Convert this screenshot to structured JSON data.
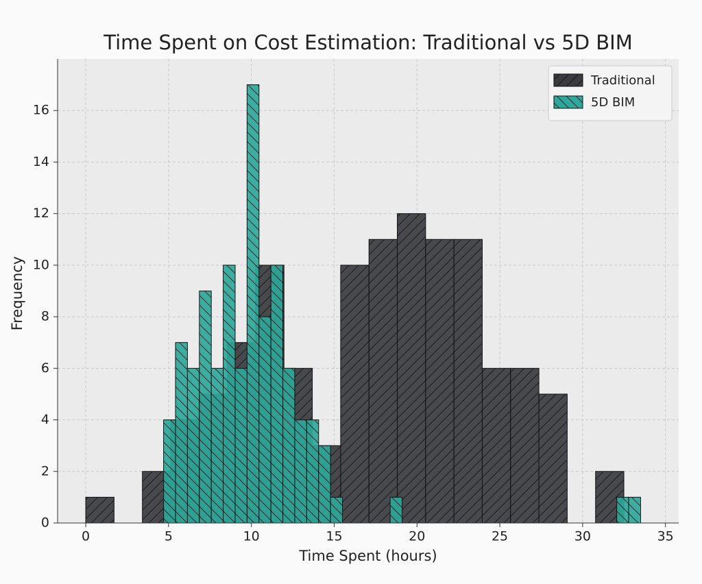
{
  "chart_data": {
    "type": "histogram",
    "title": "Time Spent on Cost Estimation: Traditional vs 5D BIM",
    "x_label": "Time Spent (hours)",
    "y_label": "Frequency",
    "xlim": [
      -1.7,
      35.8
    ],
    "ylim": [
      0,
      18
    ],
    "xticks": [
      0,
      5,
      10,
      15,
      20,
      25,
      30,
      35
    ],
    "yticks": [
      0,
      2,
      4,
      6,
      8,
      10,
      12,
      14,
      16
    ],
    "grid": true,
    "legend": "upper right",
    "series": [
      {
        "name": "Traditional",
        "color": "#3a3b3f",
        "hatch": "/",
        "bins": [
          0,
          1.71,
          3.42,
          5.13,
          6.84,
          8.55,
          10.26,
          11.97,
          13.68,
          15.39,
          17.1,
          18.81,
          20.52,
          22.23,
          23.94,
          25.65,
          27.36,
          29.07,
          30.78,
          32.49,
          34.2
        ],
        "values": [
          1,
          0,
          2,
          4,
          5,
          7,
          10,
          6,
          3,
          10,
          11,
          12,
          11,
          11,
          6,
          6,
          5,
          0,
          2,
          0
        ]
      },
      {
        "name": "5D BIM",
        "color": "#2fa79a",
        "hatch": "\\",
        "bins": [
          4.7,
          5.42,
          6.14,
          6.86,
          7.58,
          8.3,
          9.02,
          9.74,
          10.46,
          11.18,
          11.9,
          12.62,
          13.34,
          14.06,
          14.78,
          15.5,
          16.22,
          16.94,
          17.66,
          18.38,
          19.1,
          19.82,
          20.54,
          21.26,
          21.98,
          22.7,
          23.42,
          24.14,
          24.86,
          25.58,
          26.3,
          27.02,
          27.74,
          28.46,
          29.18,
          29.9,
          30.62,
          31.34,
          32.06,
          32.78,
          33.5
        ],
        "values": [
          4,
          7,
          6,
          9,
          6,
          10,
          6,
          17,
          8,
          10,
          6,
          4,
          4,
          3,
          1,
          0,
          0,
          0,
          0,
          1,
          0,
          0,
          0,
          0,
          0,
          0,
          0,
          0,
          0,
          0,
          0,
          0,
          0,
          0,
          0,
          0,
          0,
          0,
          1,
          1
        ]
      }
    ]
  }
}
